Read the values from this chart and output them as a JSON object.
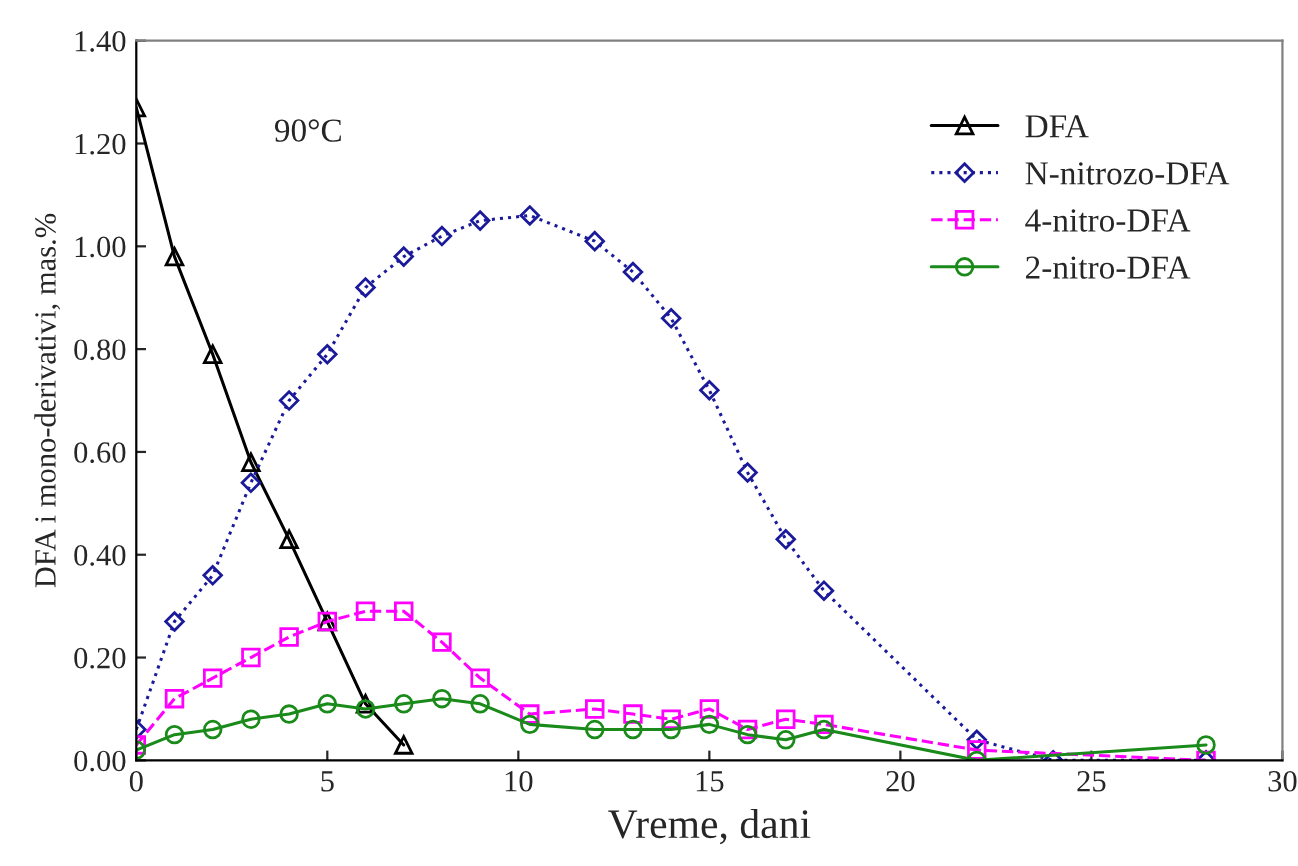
{
  "chart_data": {
    "type": "line",
    "xlabel": "Vreme, dani",
    "ylabel": "DFA i mono-derivativi, mas.%",
    "annotations": [
      "90°C"
    ],
    "xlim": [
      0,
      30
    ],
    "xticks": [
      0,
      5,
      10,
      15,
      20,
      25,
      30
    ],
    "ylim": [
      0,
      1.4
    ],
    "yticks": [
      {
        "value": 0,
        "label": "0.00"
      },
      {
        "value": 0.2,
        "label": "0.20"
      },
      {
        "value": 0.4,
        "label": "0.40"
      },
      {
        "value": 0.6,
        "label": "0.60"
      },
      {
        "value": 0.8,
        "label": "0.80"
      },
      {
        "value": 1.0,
        "label": "1.00"
      },
      {
        "value": 1.2,
        "label": "1.20"
      },
      {
        "value": 1.4,
        "label": "1.40"
      }
    ],
    "grid": false,
    "legend": "top right",
    "series": [
      {
        "name": "DFA",
        "color": "#000000",
        "marker": "triangle",
        "line_style": "solid",
        "x": [
          0,
          1,
          2,
          3,
          4,
          5,
          6,
          7
        ],
        "values": [
          1.27,
          0.98,
          0.79,
          0.58,
          0.43,
          0.27,
          0.11,
          0.03
        ]
      },
      {
        "name": "N-nitrozo-DFA",
        "color": "#1a1a9a",
        "marker": "diamond",
        "line_style": "dotted",
        "x": [
          0,
          1,
          2,
          3,
          4,
          5,
          6,
          7,
          8,
          9,
          10.3,
          12,
          13,
          14,
          15,
          16,
          17,
          18,
          22,
          24,
          28
        ],
        "values": [
          0.06,
          0.27,
          0.36,
          0.54,
          0.7,
          0.79,
          0.92,
          0.98,
          1.02,
          1.05,
          1.06,
          1.01,
          0.95,
          0.86,
          0.72,
          0.56,
          0.43,
          0.33,
          0.04,
          0.0,
          0.0
        ]
      },
      {
        "name": "4-nitro-DFA",
        "color": "#ff00ff",
        "marker": "square",
        "line_style": "dashed",
        "x": [
          0,
          1,
          2,
          3,
          4,
          5,
          6,
          7,
          8,
          9,
          10.3,
          12,
          13,
          14,
          15,
          16,
          17,
          18,
          22,
          28
        ],
        "values": [
          0.03,
          0.12,
          0.16,
          0.2,
          0.24,
          0.27,
          0.29,
          0.29,
          0.23,
          0.16,
          0.09,
          0.1,
          0.09,
          0.08,
          0.1,
          0.06,
          0.08,
          0.07,
          0.02,
          0.0
        ]
      },
      {
        "name": "2-nitro-DFA",
        "color": "#1a8a1a",
        "marker": "circle",
        "line_style": "solid",
        "x": [
          0,
          1,
          2,
          3,
          4,
          5,
          6,
          7,
          8,
          9,
          10.3,
          12,
          13,
          14,
          15,
          16,
          17,
          18,
          22,
          28
        ],
        "values": [
          0.02,
          0.05,
          0.06,
          0.08,
          0.09,
          0.11,
          0.1,
          0.11,
          0.12,
          0.11,
          0.07,
          0.06,
          0.06,
          0.06,
          0.07,
          0.05,
          0.04,
          0.06,
          0.0,
          0.03
        ]
      }
    ]
  }
}
